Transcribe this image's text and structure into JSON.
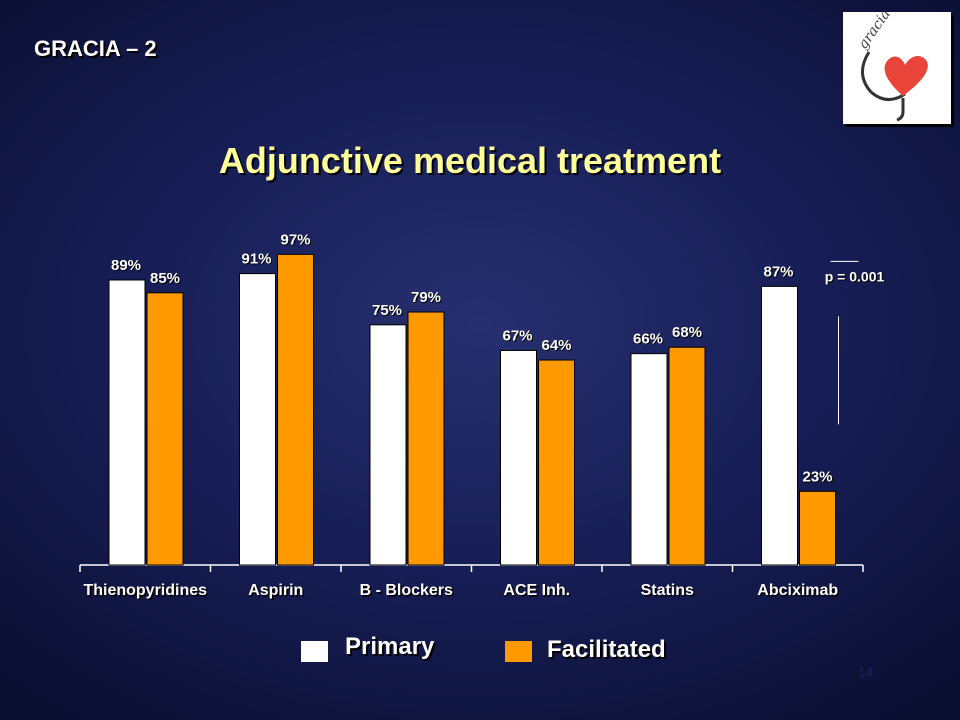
{
  "slide": {
    "label": "GRACIA – 2",
    "page_number": "14"
  },
  "colors": {
    "primary": "#ffffff",
    "facilitated": "#ff9900",
    "title": "#ffff99"
  },
  "logo": {
    "text": "gracia",
    "icon": "heart-logo-icon"
  },
  "chart_data": {
    "type": "bar",
    "title": "Adjunctive medical treatment",
    "xlabel": "",
    "ylabel": "",
    "ylim": [
      0,
      100
    ],
    "categories": [
      "Thienopyridines",
      "Aspirin",
      "B - Blockers",
      "ACE Inh.",
      "Statins",
      "Abciximab"
    ],
    "series": [
      {
        "name": "Primary",
        "values": [
          89,
          91,
          75,
          67,
          66,
          87
        ],
        "labels": [
          "89%",
          "91%",
          "75%",
          "67%",
          "66%",
          "87%"
        ],
        "color": "#ffffff"
      },
      {
        "name": "Facilitated",
        "values": [
          85,
          97,
          79,
          64,
          68,
          23
        ],
        "labels": [
          "85%",
          "97%",
          "79%",
          "64%",
          "68%",
          "23%"
        ],
        "color": "#ff9900"
      }
    ],
    "annotations": [
      {
        "text": "p = 0.001",
        "category": "Abciximab"
      }
    ],
    "grid": false,
    "legend": "bottom"
  }
}
